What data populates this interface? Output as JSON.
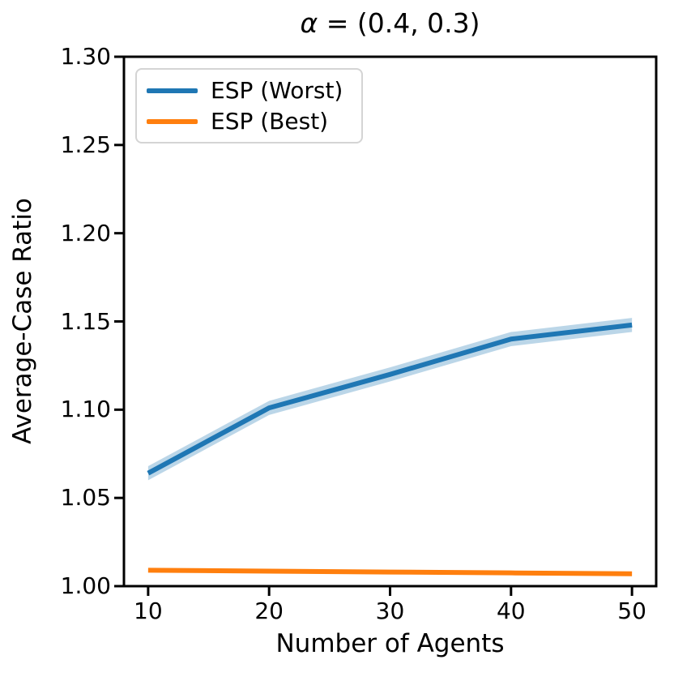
{
  "figure": {
    "title_symbol": "α",
    "title_rest": " = (0.4, 0.3)"
  },
  "colors": {
    "series_worst": "#1f77b4",
    "series_best": "#ff7f0e",
    "band_opacity": 0.3,
    "axis": "#000000",
    "legend_border": "#d4d4d4"
  },
  "chart_data": {
    "type": "line",
    "title": "α = (0.4, 0.3)",
    "xlabel": "Number of Agents",
    "ylabel": "Average-Case Ratio",
    "x": [
      10,
      20,
      30,
      40,
      50
    ],
    "xlim": [
      8,
      52
    ],
    "ylim": [
      1.0,
      1.3
    ],
    "xticks": [
      10,
      20,
      30,
      40,
      50
    ],
    "xtick_labels": [
      "10",
      "20",
      "30",
      "40",
      "50"
    ],
    "yticks": [
      1.0,
      1.05,
      1.1,
      1.15,
      1.2,
      1.25,
      1.3
    ],
    "ytick_labels": [
      "1.00",
      "1.05",
      "1.10",
      "1.15",
      "1.20",
      "1.25",
      "1.30"
    ],
    "grid": false,
    "legend_position": "upper left",
    "series": [
      {
        "name": "ESP (Worst)",
        "color": "#1f77b4",
        "values": [
          1.064,
          1.101,
          1.12,
          1.14,
          1.148
        ],
        "band_halfwidth": 0.004
      },
      {
        "name": "ESP (Best)",
        "color": "#ff7f0e",
        "values": [
          1.009,
          1.0085,
          1.008,
          1.0075,
          1.007
        ],
        "band_halfwidth": 0
      }
    ]
  }
}
